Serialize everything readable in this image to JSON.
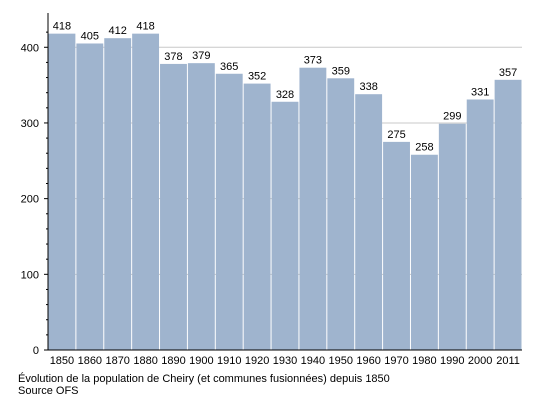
{
  "caption": {
    "title": "Évolution de la population de Cheiry (et communes fusionnées) depuis 1850",
    "source": "Source OFS"
  },
  "colors": {
    "bar": "#9fb4ce",
    "grid": "#c8c8c8",
    "axis": "#000000"
  },
  "chart_data": {
    "type": "bar",
    "categories": [
      "1850",
      "1860",
      "1870",
      "1880",
      "1890",
      "1900",
      "1910",
      "1920",
      "1930",
      "1940",
      "1950",
      "1960",
      "1970",
      "1980",
      "1990",
      "2000",
      "2011"
    ],
    "values": [
      418,
      405,
      412,
      418,
      378,
      379,
      365,
      352,
      328,
      373,
      359,
      338,
      275,
      258,
      299,
      331,
      357
    ],
    "ylim": [
      0,
      440
    ],
    "yticks": [
      0,
      100,
      200,
      300,
      400
    ],
    "grid": true,
    "data_labels": true
  }
}
